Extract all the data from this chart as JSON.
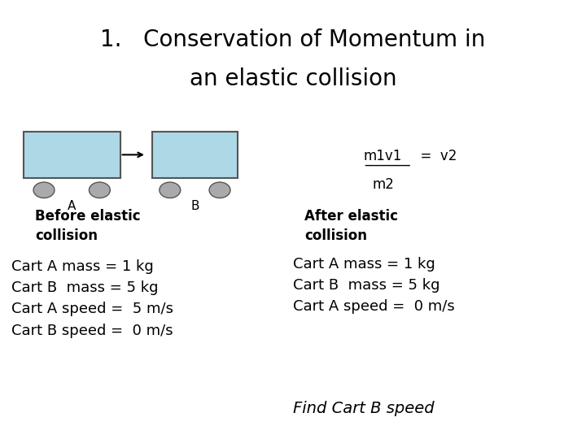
{
  "title_line1": "1.   Conservation of Momentum in",
  "title_line2": "an elastic collision",
  "title_fontsize": 20,
  "bg_color": "#ffffff",
  "cart_fill": "#add8e6",
  "label_A": "A",
  "label_B": "B",
  "before_text": "Before elastic\ncollision",
  "after_text": "After elastic\ncollision",
  "left_data": "Cart A mass = 1 kg\nCart B  mass = 5 kg\nCart A speed =  5 m/s\nCart B speed =  0 m/s",
  "right_data": "Cart A mass = 1 kg\nCart B  mass = 5 kg\nCart A speed =  0 m/s",
  "find_text": "Find Cart B speed",
  "text_color": "#000000",
  "formula_m1v1": "m1v1",
  "formula_rest": "  =  v2",
  "formula_m2": "m2"
}
